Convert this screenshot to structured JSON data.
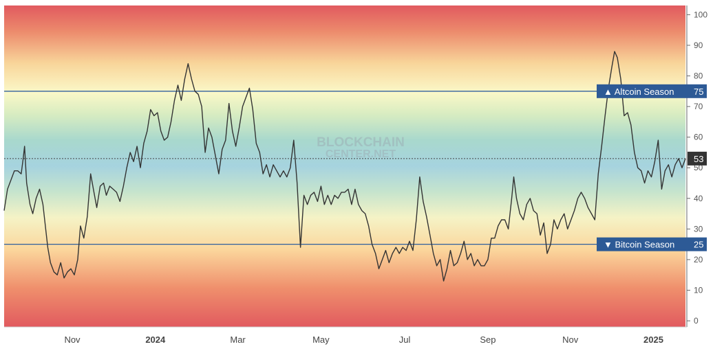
{
  "watermark": {
    "line1": "BLOCKCHAIN",
    "line2": "CENTER.NET"
  },
  "chart_data": {
    "type": "line",
    "ylim": [
      -2,
      103
    ],
    "yticks": [
      0,
      10,
      20,
      30,
      40,
      50,
      60,
      70,
      80,
      90,
      100
    ],
    "x_axis_labels": [
      {
        "label": "Nov",
        "t": 0.1,
        "bold": false
      },
      {
        "label": "2024",
        "t": 0.222,
        "bold": true
      },
      {
        "label": "Mar",
        "t": 0.343,
        "bold": false
      },
      {
        "label": "May",
        "t": 0.465,
        "bold": false
      },
      {
        "label": "Jul",
        "t": 0.588,
        "bold": false
      },
      {
        "label": "Sep",
        "t": 0.71,
        "bold": false
      },
      {
        "label": "Nov",
        "t": 0.831,
        "bold": false
      },
      {
        "label": "2025",
        "t": 0.953,
        "bold": true
      }
    ],
    "reference_lines": [
      {
        "name": "Altcoin Season",
        "value": 75,
        "symbol": "▲",
        "text": "▲ Altcoin Season",
        "value_text": "75"
      },
      {
        "name": "Bitcoin Season",
        "value": 25,
        "symbol": "▼",
        "text": "▼ Bitcoin Season",
        "value_text": "25"
      }
    ],
    "current": {
      "value": 53,
      "value_text": "53"
    },
    "series": [
      {
        "color": "#333333",
        "points": [
          [
            0.0,
            36
          ],
          [
            0.005,
            43
          ],
          [
            0.01,
            46
          ],
          [
            0.015,
            49
          ],
          [
            0.02,
            49
          ],
          [
            0.025,
            48
          ],
          [
            0.028,
            53
          ],
          [
            0.03,
            57
          ],
          [
            0.033,
            45
          ],
          [
            0.038,
            38
          ],
          [
            0.042,
            35
          ],
          [
            0.047,
            40
          ],
          [
            0.052,
            43
          ],
          [
            0.057,
            38
          ],
          [
            0.061,
            30
          ],
          [
            0.064,
            24
          ],
          [
            0.068,
            19
          ],
          [
            0.073,
            16
          ],
          [
            0.078,
            15
          ],
          [
            0.083,
            19
          ],
          [
            0.088,
            14
          ],
          [
            0.093,
            16
          ],
          [
            0.098,
            17
          ],
          [
            0.103,
            15
          ],
          [
            0.108,
            20
          ],
          [
            0.112,
            31
          ],
          [
            0.117,
            27
          ],
          [
            0.122,
            34
          ],
          [
            0.127,
            48
          ],
          [
            0.131,
            43
          ],
          [
            0.136,
            37
          ],
          [
            0.141,
            44
          ],
          [
            0.146,
            45
          ],
          [
            0.15,
            41
          ],
          [
            0.155,
            44
          ],
          [
            0.16,
            43
          ],
          [
            0.165,
            42
          ],
          [
            0.17,
            39
          ],
          [
            0.175,
            44
          ],
          [
            0.18,
            50
          ],
          [
            0.185,
            55
          ],
          [
            0.19,
            52
          ],
          [
            0.195,
            57
          ],
          [
            0.2,
            50
          ],
          [
            0.205,
            58
          ],
          [
            0.21,
            62
          ],
          [
            0.215,
            69
          ],
          [
            0.22,
            67
          ],
          [
            0.225,
            68
          ],
          [
            0.23,
            62
          ],
          [
            0.235,
            59
          ],
          [
            0.24,
            60
          ],
          [
            0.245,
            65
          ],
          [
            0.25,
            72
          ],
          [
            0.255,
            77
          ],
          [
            0.26,
            72
          ],
          [
            0.265,
            79
          ],
          [
            0.27,
            84
          ],
          [
            0.275,
            79
          ],
          [
            0.28,
            75
          ],
          [
            0.285,
            74
          ],
          [
            0.29,
            70
          ],
          [
            0.295,
            55
          ],
          [
            0.3,
            63
          ],
          [
            0.305,
            60
          ],
          [
            0.31,
            54
          ],
          [
            0.315,
            48
          ],
          [
            0.32,
            56
          ],
          [
            0.325,
            59
          ],
          [
            0.33,
            71
          ],
          [
            0.335,
            62
          ],
          [
            0.34,
            57
          ],
          [
            0.345,
            63
          ],
          [
            0.35,
            70
          ],
          [
            0.355,
            73
          ],
          [
            0.36,
            76
          ],
          [
            0.365,
            69
          ],
          [
            0.37,
            58
          ],
          [
            0.375,
            55
          ],
          [
            0.38,
            48
          ],
          [
            0.385,
            51
          ],
          [
            0.39,
            47
          ],
          [
            0.395,
            51
          ],
          [
            0.4,
            49
          ],
          [
            0.405,
            47
          ],
          [
            0.41,
            49
          ],
          [
            0.415,
            47
          ],
          [
            0.42,
            50
          ],
          [
            0.425,
            59
          ],
          [
            0.43,
            45
          ],
          [
            0.435,
            24
          ],
          [
            0.44,
            41
          ],
          [
            0.445,
            38
          ],
          [
            0.45,
            41
          ],
          [
            0.455,
            42
          ],
          [
            0.46,
            39
          ],
          [
            0.465,
            44
          ],
          [
            0.47,
            38
          ],
          [
            0.475,
            41
          ],
          [
            0.48,
            38
          ],
          [
            0.485,
            41
          ],
          [
            0.49,
            40
          ],
          [
            0.495,
            42
          ],
          [
            0.5,
            42
          ],
          [
            0.505,
            43
          ],
          [
            0.51,
            38
          ],
          [
            0.515,
            43
          ],
          [
            0.52,
            38
          ],
          [
            0.525,
            36
          ],
          [
            0.53,
            35
          ],
          [
            0.535,
            31
          ],
          [
            0.54,
            25
          ],
          [
            0.545,
            22
          ],
          [
            0.55,
            17
          ],
          [
            0.555,
            20
          ],
          [
            0.56,
            23
          ],
          [
            0.565,
            19
          ],
          [
            0.57,
            22
          ],
          [
            0.575,
            24
          ],
          [
            0.58,
            22
          ],
          [
            0.585,
            24
          ],
          [
            0.59,
            23
          ],
          [
            0.595,
            26
          ],
          [
            0.6,
            23
          ],
          [
            0.605,
            33
          ],
          [
            0.61,
            47
          ],
          [
            0.615,
            39
          ],
          [
            0.62,
            34
          ],
          [
            0.625,
            28
          ],
          [
            0.63,
            22
          ],
          [
            0.635,
            18
          ],
          [
            0.64,
            20
          ],
          [
            0.645,
            13
          ],
          [
            0.65,
            17
          ],
          [
            0.655,
            23
          ],
          [
            0.66,
            18
          ],
          [
            0.665,
            19
          ],
          [
            0.67,
            22
          ],
          [
            0.675,
            26
          ],
          [
            0.68,
            20
          ],
          [
            0.685,
            22
          ],
          [
            0.69,
            18
          ],
          [
            0.695,
            20
          ],
          [
            0.7,
            18
          ],
          [
            0.705,
            18
          ],
          [
            0.71,
            20
          ],
          [
            0.715,
            27
          ],
          [
            0.72,
            27
          ],
          [
            0.725,
            31
          ],
          [
            0.73,
            33
          ],
          [
            0.735,
            33
          ],
          [
            0.74,
            30
          ],
          [
            0.745,
            40
          ],
          [
            0.748,
            47
          ],
          [
            0.752,
            40
          ],
          [
            0.757,
            35
          ],
          [
            0.762,
            33
          ],
          [
            0.767,
            38
          ],
          [
            0.772,
            40
          ],
          [
            0.777,
            36
          ],
          [
            0.782,
            35
          ],
          [
            0.787,
            28
          ],
          [
            0.792,
            32
          ],
          [
            0.797,
            22
          ],
          [
            0.802,
            25
          ],
          [
            0.807,
            33
          ],
          [
            0.812,
            30
          ],
          [
            0.817,
            33
          ],
          [
            0.822,
            35
          ],
          [
            0.827,
            30
          ],
          [
            0.832,
            33
          ],
          [
            0.837,
            36
          ],
          [
            0.842,
            40
          ],
          [
            0.847,
            42
          ],
          [
            0.852,
            40
          ],
          [
            0.857,
            37
          ],
          [
            0.862,
            35
          ],
          [
            0.867,
            33
          ],
          [
            0.872,
            48
          ],
          [
            0.877,
            57
          ],
          [
            0.882,
            67
          ],
          [
            0.887,
            76
          ],
          [
            0.892,
            83
          ],
          [
            0.896,
            88
          ],
          [
            0.9,
            86
          ],
          [
            0.905,
            79
          ],
          [
            0.91,
            67
          ],
          [
            0.915,
            68
          ],
          [
            0.92,
            64
          ],
          [
            0.925,
            55
          ],
          [
            0.93,
            50
          ],
          [
            0.935,
            49
          ],
          [
            0.94,
            45
          ],
          [
            0.945,
            49
          ],
          [
            0.95,
            47
          ],
          [
            0.955,
            52
          ],
          [
            0.96,
            59
          ],
          [
            0.965,
            43
          ],
          [
            0.97,
            49
          ],
          [
            0.975,
            51
          ],
          [
            0.98,
            47
          ],
          [
            0.985,
            51
          ],
          [
            0.99,
            53
          ],
          [
            0.995,
            50
          ],
          [
            1.0,
            53
          ]
        ]
      }
    ]
  }
}
